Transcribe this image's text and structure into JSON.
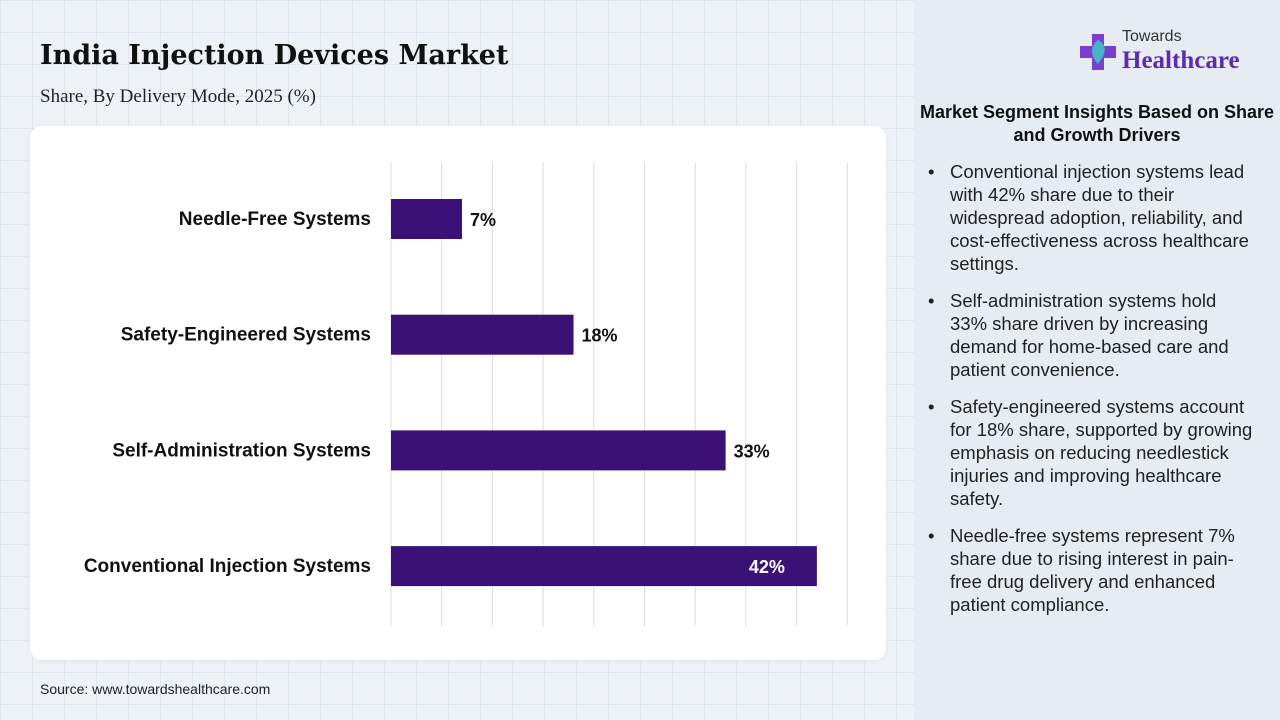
{
  "header": {
    "title": "India Injection Devices Market",
    "subtitle": "Share, By Delivery Mode, 2025 (%)"
  },
  "chart_data": {
    "type": "bar",
    "orientation": "horizontal",
    "categories": [
      "Needle-Free Systems",
      "Safety-Engineered Systems",
      "Self-Administration Systems",
      "Conventional Injection Systems"
    ],
    "values": [
      7,
      18,
      33,
      42
    ],
    "value_labels": [
      "7%",
      "18%",
      "33%",
      "42%"
    ],
    "xlim": [
      0,
      45
    ],
    "grid": true,
    "bar_color": "#3b1178"
  },
  "source": "Source: www.towardshealthcare.com",
  "logo": {
    "line1": "Towards",
    "line2": "Healthcare"
  },
  "insights": {
    "title": "Market Segment Insights Based on Share and Growth Drivers",
    "items": [
      "Conventional injection systems lead with 42% share due to their widespread adoption, reliability, and cost-effectiveness across healthcare settings.",
      "Self-administration systems hold 33% share driven by increasing demand for home-based care and patient convenience.",
      "Safety-engineered systems account for 18% share, supported by growing emphasis on reducing needlestick injuries and improving healthcare safety.",
      "Needle-free systems represent 7% share due to rising interest in pain-free drug delivery and enhanced patient compliance."
    ]
  },
  "colors": {
    "accent": "#5b2bb0",
    "bar": "#3b1178"
  }
}
